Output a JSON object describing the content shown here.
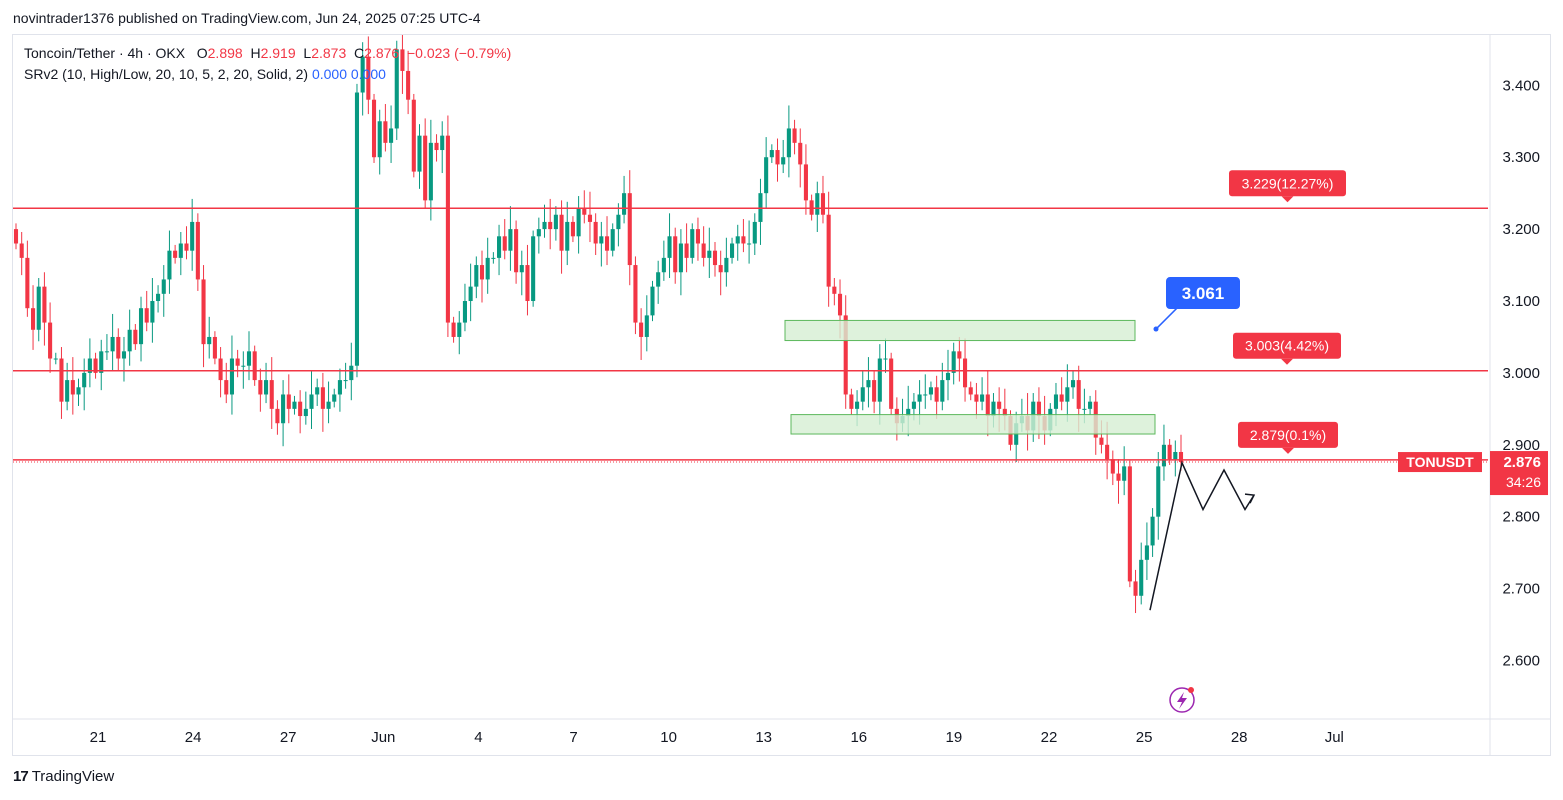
{
  "header": {
    "published_line": "novintrader1376 published on TradingView.com, Jun 24, 2025 07:25 UTC-4"
  },
  "legend": {
    "symbol": "Toncoin/Tether · 4h · OKX",
    "o_label": "O",
    "o_value": "2.898",
    "h_label": "H",
    "h_value": "2.919",
    "l_label": "L",
    "l_value": "2.873",
    "c_label": "C",
    "c_value": "2.876",
    "change": "−0.023 (−0.79%)",
    "indicator": "SRv2 (10, High/Low, 20, 10, 5, 2, 20, Solid, 2)",
    "indicator_v1": "0.000",
    "indicator_v2": "0.000"
  },
  "footer": {
    "brand": "TradingView",
    "logo_text": "17"
  },
  "colors": {
    "up": "#089981",
    "down": "#f23645",
    "line": "#f23645",
    "zone_fill": "#d6efd3",
    "zone_stroke": "#5cb85c",
    "callout": "#2962ff"
  },
  "chart_data": {
    "type": "candlestick",
    "symbol": "TONUSDT",
    "timeframe": "4h",
    "y_ticks": [
      "3.400",
      "3.300",
      "3.200",
      "3.100",
      "3.000",
      "2.900",
      "2.800",
      "2.700",
      "2.600"
    ],
    "ylim": [
      2.52,
      3.47
    ],
    "x_ticks": [
      "21",
      "24",
      "27",
      "Jun",
      "4",
      "7",
      "10",
      "13",
      "16",
      "19",
      "22",
      "25",
      "28",
      "Jul"
    ],
    "horizontal_lines": [
      {
        "price": 3.229,
        "label": "3.229(12.27%)"
      },
      {
        "price": 3.003,
        "label": "3.003(4.42%)"
      },
      {
        "price": 2.879,
        "label": "2.879(0.1%)"
      }
    ],
    "zones": [
      {
        "from": 3.045,
        "to": 3.073,
        "start": "Jun 12",
        "end": "Jun 23"
      },
      {
        "from": 2.915,
        "to": 2.942,
        "start": "Jun 12",
        "end": "Jun 23"
      }
    ],
    "callout": "3.061",
    "last_price_label": "2.876",
    "countdown_label": "34:26",
    "symbol_label": "TONUSDT",
    "projection": [
      2.67,
      2.875,
      2.81,
      2.865,
      2.81,
      2.83
    ],
    "series": [
      {
        "name": "TONUSDT",
        "close": [
          3.18,
          3.16,
          3.09,
          3.06,
          3.12,
          3.07,
          3.02,
          3.02,
          2.96,
          2.99,
          2.97,
          2.98,
          3.0,
          3.02,
          3.0,
          3.03,
          3.03,
          3.05,
          3.02,
          3.03,
          3.06,
          3.04,
          3.09,
          3.07,
          3.1,
          3.11,
          3.13,
          3.17,
          3.16,
          3.18,
          3.17,
          3.21,
          3.13,
          3.04,
          3.05,
          3.02,
          2.99,
          2.97,
          3.02,
          3.01,
          3.01,
          3.03,
          2.99,
          2.97,
          2.99,
          2.95,
          2.93,
          2.97,
          2.95,
          2.96,
          2.94,
          2.95,
          2.97,
          2.98,
          2.95,
          2.96,
          2.97,
          2.99,
          2.99,
          3.01,
          3.39,
          3.44,
          3.38,
          3.3,
          3.35,
          3.32,
          3.34,
          3.45,
          3.42,
          3.38,
          3.28,
          3.33,
          3.24,
          3.32,
          3.31,
          3.33,
          3.07,
          3.05,
          3.07,
          3.1,
          3.12,
          3.15,
          3.13,
          3.16,
          3.16,
          3.19,
          3.17,
          3.2,
          3.14,
          3.15,
          3.1,
          3.19,
          3.2,
          3.21,
          3.2,
          3.22,
          3.17,
          3.21,
          3.19,
          3.23,
          3.22,
          3.21,
          3.18,
          3.19,
          3.17,
          3.2,
          3.22,
          3.25,
          3.15,
          3.07,
          3.05,
          3.08,
          3.12,
          3.14,
          3.16,
          3.19,
          3.14,
          3.18,
          3.16,
          3.2,
          3.18,
          3.16,
          3.17,
          3.15,
          3.14,
          3.16,
          3.18,
          3.19,
          3.18,
          3.18,
          3.21,
          3.25,
          3.3,
          3.31,
          3.29,
          3.3,
          3.34,
          3.32,
          3.29,
          3.24,
          3.22,
          3.25,
          3.22,
          3.12,
          3.11,
          3.08,
          2.97,
          2.95,
          2.96,
          2.98,
          2.99,
          2.96,
          3.02,
          3.02,
          2.95,
          2.93,
          2.94,
          2.95,
          2.96,
          2.97,
          2.97,
          2.98,
          2.96,
          2.99,
          3.0,
          3.03,
          3.02,
          2.98,
          2.97,
          2.96,
          2.97,
          2.94,
          2.96,
          2.95,
          2.94,
          2.9,
          2.93,
          2.94,
          2.92,
          2.96,
          2.94,
          2.92,
          2.95,
          2.97,
          2.96,
          2.98,
          2.99,
          2.95,
          2.95,
          2.96,
          2.91,
          2.9,
          2.88,
          2.86,
          2.85,
          2.87,
          2.71,
          2.69,
          2.74,
          2.76,
          2.8,
          2.87,
          2.9,
          2.88,
          2.89,
          2.876
        ]
      }
    ]
  }
}
